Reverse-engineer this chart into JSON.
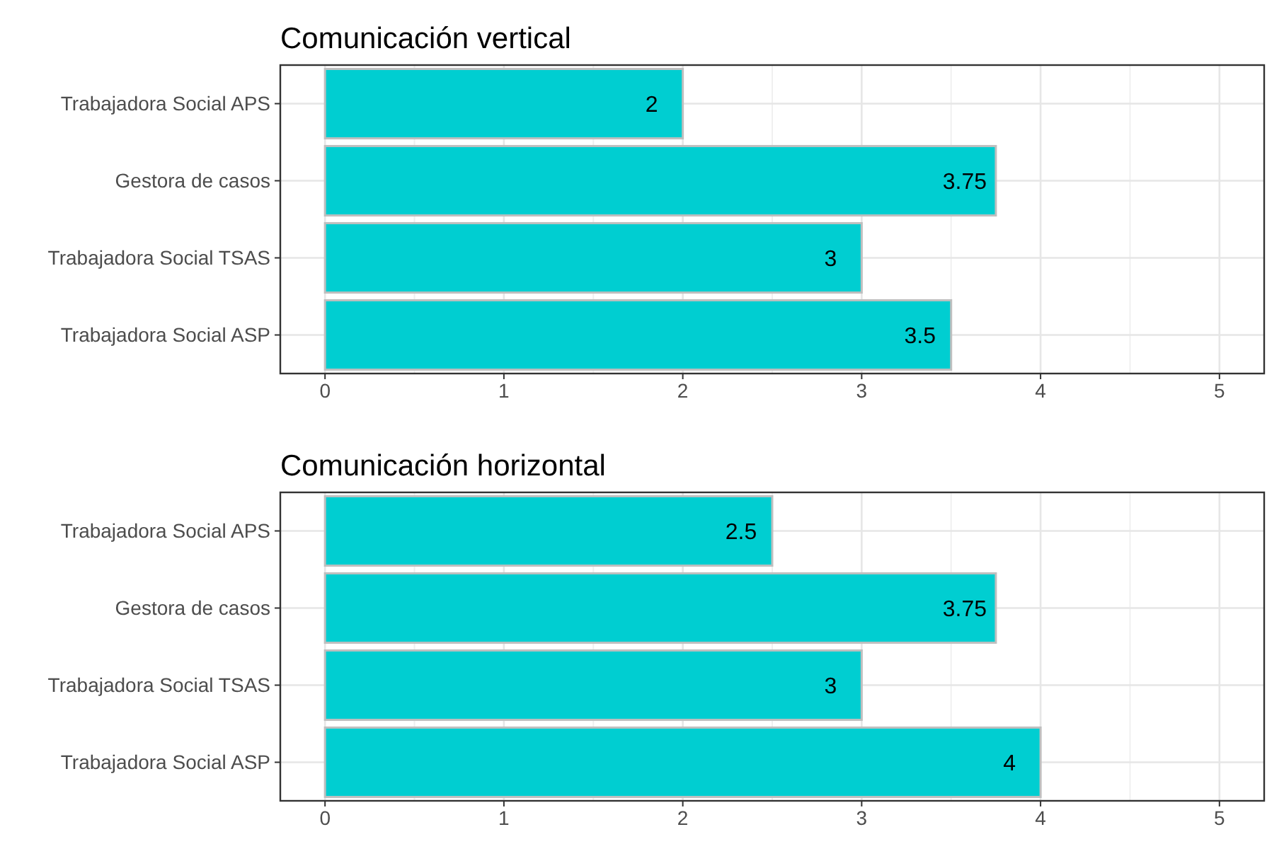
{
  "chart_data": [
    {
      "type": "bar",
      "title": "Comunicación vertical",
      "orientation": "horizontal",
      "categories": [
        "Trabajadora Social APS",
        "Gestora de casos",
        "Trabajadora Social TSAS",
        "Trabajadora Social ASP"
      ],
      "values": [
        2,
        3.75,
        3,
        3.5
      ],
      "color": "#00ced1",
      "xlim": [
        -0.25,
        5.25
      ],
      "xticks": [
        0,
        1,
        2,
        3,
        4,
        5
      ],
      "grid": true,
      "data_labels": true
    },
    {
      "type": "bar",
      "title": "Comunicación horizontal",
      "orientation": "horizontal",
      "categories": [
        "Trabajadora Social APS",
        "Gestora de casos",
        "Trabajadora Social TSAS",
        "Trabajadora Social ASP"
      ],
      "values": [
        2.5,
        3.75,
        3,
        4
      ],
      "color": "#00ced1",
      "xlim": [
        -0.25,
        5.25
      ],
      "xticks": [
        0,
        1,
        2,
        3,
        4,
        5
      ],
      "grid": true,
      "data_labels": true
    }
  ]
}
